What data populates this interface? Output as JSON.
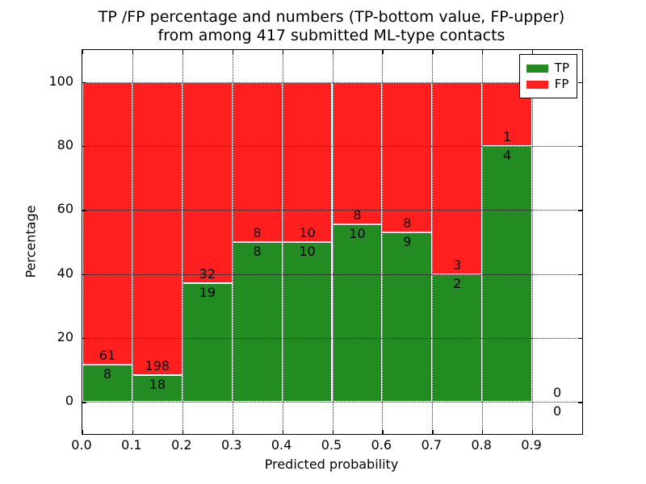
{
  "chart_data": {
    "type": "bar",
    "subtype": "stacked-percentage",
    "title_lines": [
      "TP /FP percentage and numbers (TP-bottom value, FP-upper)",
      "from among 417 submitted ML-type contacts"
    ],
    "xlabel": "Predicted probability",
    "ylabel": "Percentage",
    "total_submitted": 417,
    "bin_width": 0.1,
    "bin_starts": [
      0.0,
      0.1,
      0.2,
      0.3,
      0.4,
      0.5,
      0.6,
      0.7,
      0.8,
      0.9
    ],
    "series": [
      {
        "name": "TP",
        "position": "bottom",
        "color": "#228b22",
        "counts": [
          8,
          18,
          19,
          8,
          10,
          10,
          9,
          2,
          4,
          0
        ]
      },
      {
        "name": "FP",
        "position": "top",
        "color": "#ff1f1f",
        "counts": [
          61,
          198,
          32,
          8,
          10,
          8,
          8,
          3,
          1,
          0
        ]
      }
    ],
    "tp_percentages": [
      11.6,
      8.3,
      37.3,
      50.0,
      50.0,
      55.6,
      52.9,
      40.0,
      80.0,
      null
    ],
    "xticks": [
      "0.0",
      "0.1",
      "0.2",
      "0.3",
      "0.4",
      "0.5",
      "0.6",
      "0.7",
      "0.8",
      "0.9"
    ],
    "yticks": [
      "0",
      "20",
      "40",
      "60",
      "80",
      "100"
    ],
    "xlim": [
      0.0,
      1.0
    ],
    "ylim": [
      -10,
      110
    ],
    "grid": {
      "style": "dotted",
      "color": "#000000",
      "on": true
    },
    "legend": {
      "position": "upper-right",
      "entries": [
        {
          "label": "TP",
          "color": "#228b22"
        },
        {
          "label": "FP",
          "color": "#ff1f1f"
        }
      ]
    }
  }
}
